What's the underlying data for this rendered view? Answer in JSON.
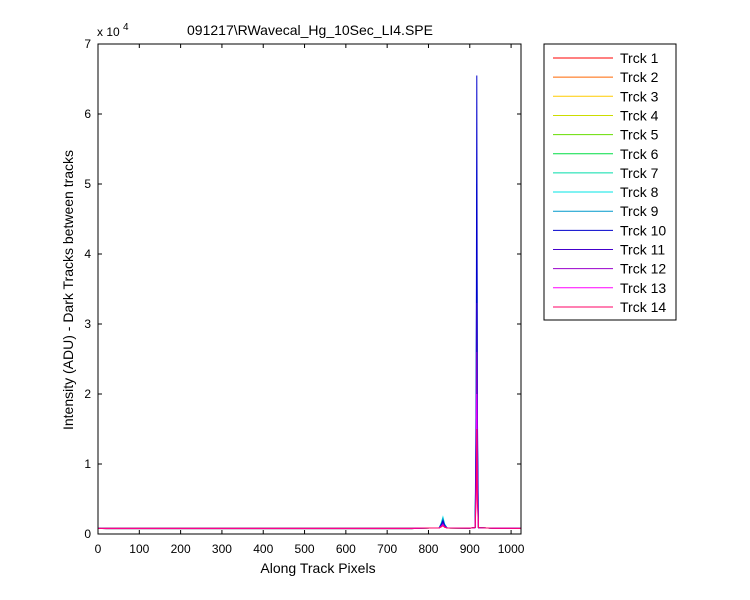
{
  "chart_data": {
    "type": "line",
    "title": "091217\\RWavecal_Hg_10Sec_LI4.SPE",
    "xlabel": "Along Track Pixels",
    "ylabel": "Intensity (ADU) - Dark Tracks between tracks",
    "xlim": [
      0,
      1024
    ],
    "ylim": [
      0,
      70000
    ],
    "x_ticks": [
      "0",
      "100",
      "200",
      "300",
      "400",
      "500",
      "600",
      "700",
      "800",
      "900",
      "1000"
    ],
    "y_ticks": [
      "0",
      "1",
      "2",
      "3",
      "4",
      "5",
      "6",
      "7"
    ],
    "y_exponent_base": "x 10",
    "y_exponent_power": "4",
    "grid": false,
    "legend_position": "outside-right",
    "baseline": 800,
    "series": [
      {
        "name": "Trck 1",
        "color": "#ff0000",
        "peak_835": 1400,
        "peak_917": 28000
      },
      {
        "name": "Trck 2",
        "color": "#ff6600",
        "peak_835": 1500,
        "peak_917": 31000
      },
      {
        "name": "Trck 3",
        "color": "#ffcc00",
        "peak_835": 1600,
        "peak_917": 34000
      },
      {
        "name": "Trck 4",
        "color": "#ccdd00",
        "peak_835": 1700,
        "peak_917": 37000
      },
      {
        "name": "Trck 5",
        "color": "#66dd00",
        "peak_835": 1800,
        "peak_917": 40000
      },
      {
        "name": "Trck 6",
        "color": "#00dd44",
        "peak_835": 1900,
        "peak_917": 43000
      },
      {
        "name": "Trck 7",
        "color": "#00ddaa",
        "peak_835": 2100,
        "peak_917": 47000
      },
      {
        "name": "Trck 8",
        "color": "#00e6e6",
        "peak_835": 2400,
        "peak_917": 52000
      },
      {
        "name": "Trck 9",
        "color": "#0099cc",
        "peak_835": 2200,
        "peak_917": 50000
      },
      {
        "name": "Trck 10",
        "color": "#0000cc",
        "peak_835": 1900,
        "peak_917": 65500
      },
      {
        "name": "Trck 11",
        "color": "#4400cc",
        "peak_835": 1600,
        "peak_917": 33000
      },
      {
        "name": "Trck 12",
        "color": "#9900cc",
        "peak_835": 1400,
        "peak_917": 26000
      },
      {
        "name": "Trck 13",
        "color": "#ff00ff",
        "peak_835": 1300,
        "peak_917": 20000
      },
      {
        "name": "Trck 14",
        "color": "#ff0066",
        "peak_835": 1200,
        "peak_917": 15000
      }
    ]
  }
}
